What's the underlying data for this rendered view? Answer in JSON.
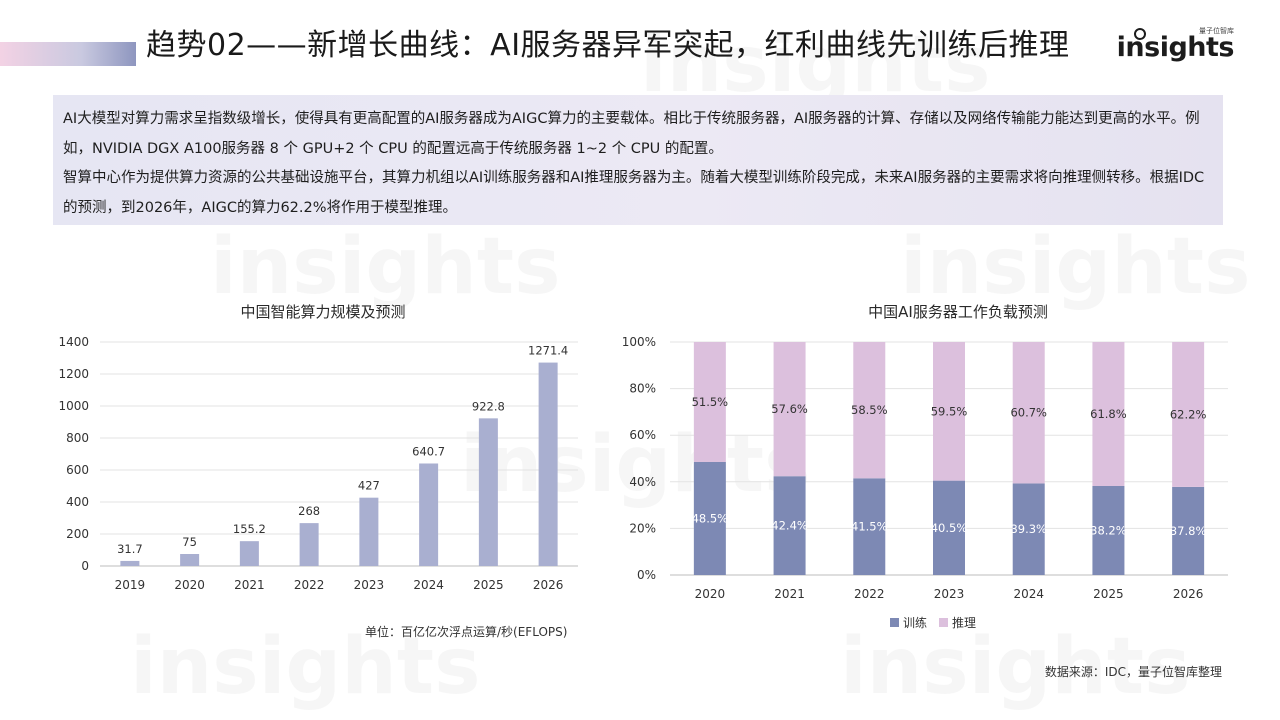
{
  "header": {
    "title": "趋势02——新增长曲线：AI服务器异军突起，红利曲线先训练后推理"
  },
  "brand": {
    "name": "insights",
    "sub": "量子位智库"
  },
  "summary": {
    "para1": "AI大模型对算力需求呈指数级增长，使得具有更高配置的AI服务器成为AIGC算力的主要载体。相比于传统服务器，AI服务器的计算、存储以及网络传输能力能达到更高的水平。例如，NVIDIA DGX A100服务器 8 个 GPU+2 个 CPU 的配置远高于传统服务器 1~2 个 CPU 的配置。",
    "para2": "智算中心作为提供算力资源的公共基础设施平台，其算力机组以AI训练服务器和AI推理服务器为主。随着大模型训练阶段完成，未来AI服务器的主要需求将向推理侧转移。根据IDC的预测，到2026年，AIGC的算力62.2%将作用于模型推理。"
  },
  "notes": {
    "unit": "单位：百亿亿次浮点运算/秒(EFLOPS)",
    "source": "数据来源：IDC，量子位智库整理"
  },
  "colors": {
    "bar_left": "#a9afd0",
    "train": "#7d89b4",
    "infer": "#dcc0dd",
    "grid": "#e3e3e3",
    "axis": "#bdbdbd"
  },
  "chart_data": [
    {
      "type": "bar",
      "title": "中国智能算力规模及预测",
      "categories": [
        "2019",
        "2020",
        "2021",
        "2022",
        "2023",
        "2024",
        "2025",
        "2026"
      ],
      "values": [
        31.7,
        75,
        155.2,
        268,
        427,
        640.7,
        922.8,
        1271.4
      ],
      "data_labels": [
        "31.7",
        "75",
        "155.2",
        "268",
        "427",
        "640.7",
        "922.8",
        "1271.4"
      ],
      "ylim": [
        0,
        1400
      ],
      "yticks": [
        "0",
        "200",
        "400",
        "600",
        "800",
        "1000",
        "1200",
        "1400"
      ],
      "grid": true
    },
    {
      "type": "bar",
      "stacked": true,
      "title": "中国AI服务器工作负载预测",
      "categories": [
        "2020",
        "2021",
        "2022",
        "2023",
        "2024",
        "2025",
        "2026"
      ],
      "series": [
        {
          "name": "训练",
          "values": [
            48.5,
            42.4,
            41.5,
            40.5,
            39.3,
            38.2,
            37.8
          ],
          "labels": [
            "48.5%",
            "42.4%",
            "41.5%",
            "40.5%",
            "39.3%",
            "38.2%",
            "37.8%"
          ]
        },
        {
          "name": "推理",
          "values": [
            51.5,
            57.6,
            58.5,
            59.5,
            60.7,
            61.8,
            62.2
          ],
          "labels": [
            "51.5%",
            "57.6%",
            "58.5%",
            "59.5%",
            "60.7%",
            "61.8%",
            "62.2%"
          ]
        }
      ],
      "ylim": [
        0,
        100
      ],
      "yticks": [
        "0%",
        "20%",
        "40%",
        "60%",
        "80%",
        "100%"
      ],
      "legend": "bottom",
      "grid": true
    }
  ]
}
